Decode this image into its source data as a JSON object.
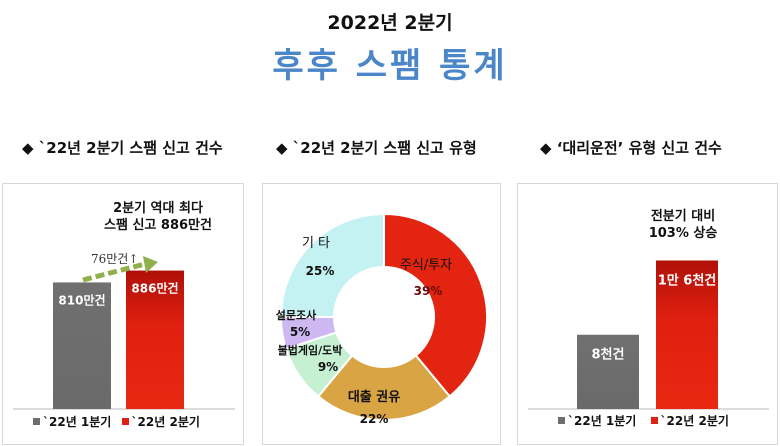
{
  "header": {
    "subtitle": "2022년 2분기",
    "title": "후후 스팸 통계"
  },
  "sections": [
    {
      "bullet": "◆",
      "label": "`22년 2분기 스팸 신고 건수"
    },
    {
      "bullet": "◆",
      "label": "`22년 2분기 스팸 신고 유형"
    },
    {
      "bullet": "◆",
      "label": "‘대리운전’ 유형 신고 건수"
    }
  ],
  "colors": {
    "title": "#4a86c8",
    "gray": "#6e6e6e",
    "red": "#e02010",
    "arrow": "#8fb04a"
  },
  "chart_data": [
    {
      "type": "bar",
      "title": "`22년 2분기 스팸 신고 건수",
      "annotation": "2분기 역대 최다\n스팸 신고 886만건",
      "increase_label": "76만건↑",
      "categories": [
        "`22년 1분기",
        "`22년 2분기"
      ],
      "values": [
        810,
        886
      ],
      "unit": "만건",
      "data_labels": [
        "810만건",
        "886만건"
      ],
      "ylim": [
        0,
        960
      ],
      "legend": [
        "`22년 1분기",
        "`22년 2분기"
      ],
      "legend_position": "bottom"
    },
    {
      "type": "pie",
      "title": "`22년 2분기 스팸 신고 유형",
      "donut": true,
      "slices": [
        {
          "label": "주식/투자",
          "value": 39,
          "pct": "39%",
          "color": "#e22410"
        },
        {
          "label": "대출 권유",
          "value": 22,
          "pct": "22%",
          "color": "#d9a444"
        },
        {
          "label": "불법게임/도박",
          "value": 9,
          "pct": "9%",
          "color": "#c6f0d2"
        },
        {
          "label": "설문조사",
          "value": 5,
          "pct": "5%",
          "color": "#cdb8f2"
        },
        {
          "label": "기 타",
          "value": 25,
          "pct": "25%",
          "color": "#c4f2f2"
        }
      ]
    },
    {
      "type": "bar",
      "title": "‘대리운전’ 유형 신고 건수",
      "annotation": "전분기 대비\n103% 상승",
      "categories": [
        "`22년 1분기",
        "`22년 2분기"
      ],
      "values": [
        8000,
        16000
      ],
      "data_labels": [
        "8천건",
        "1만 6천건"
      ],
      "ylim": [
        0,
        16700
      ],
      "legend": [
        "`22년 1분기",
        "`22년 2분기"
      ],
      "legend_position": "bottom"
    }
  ]
}
